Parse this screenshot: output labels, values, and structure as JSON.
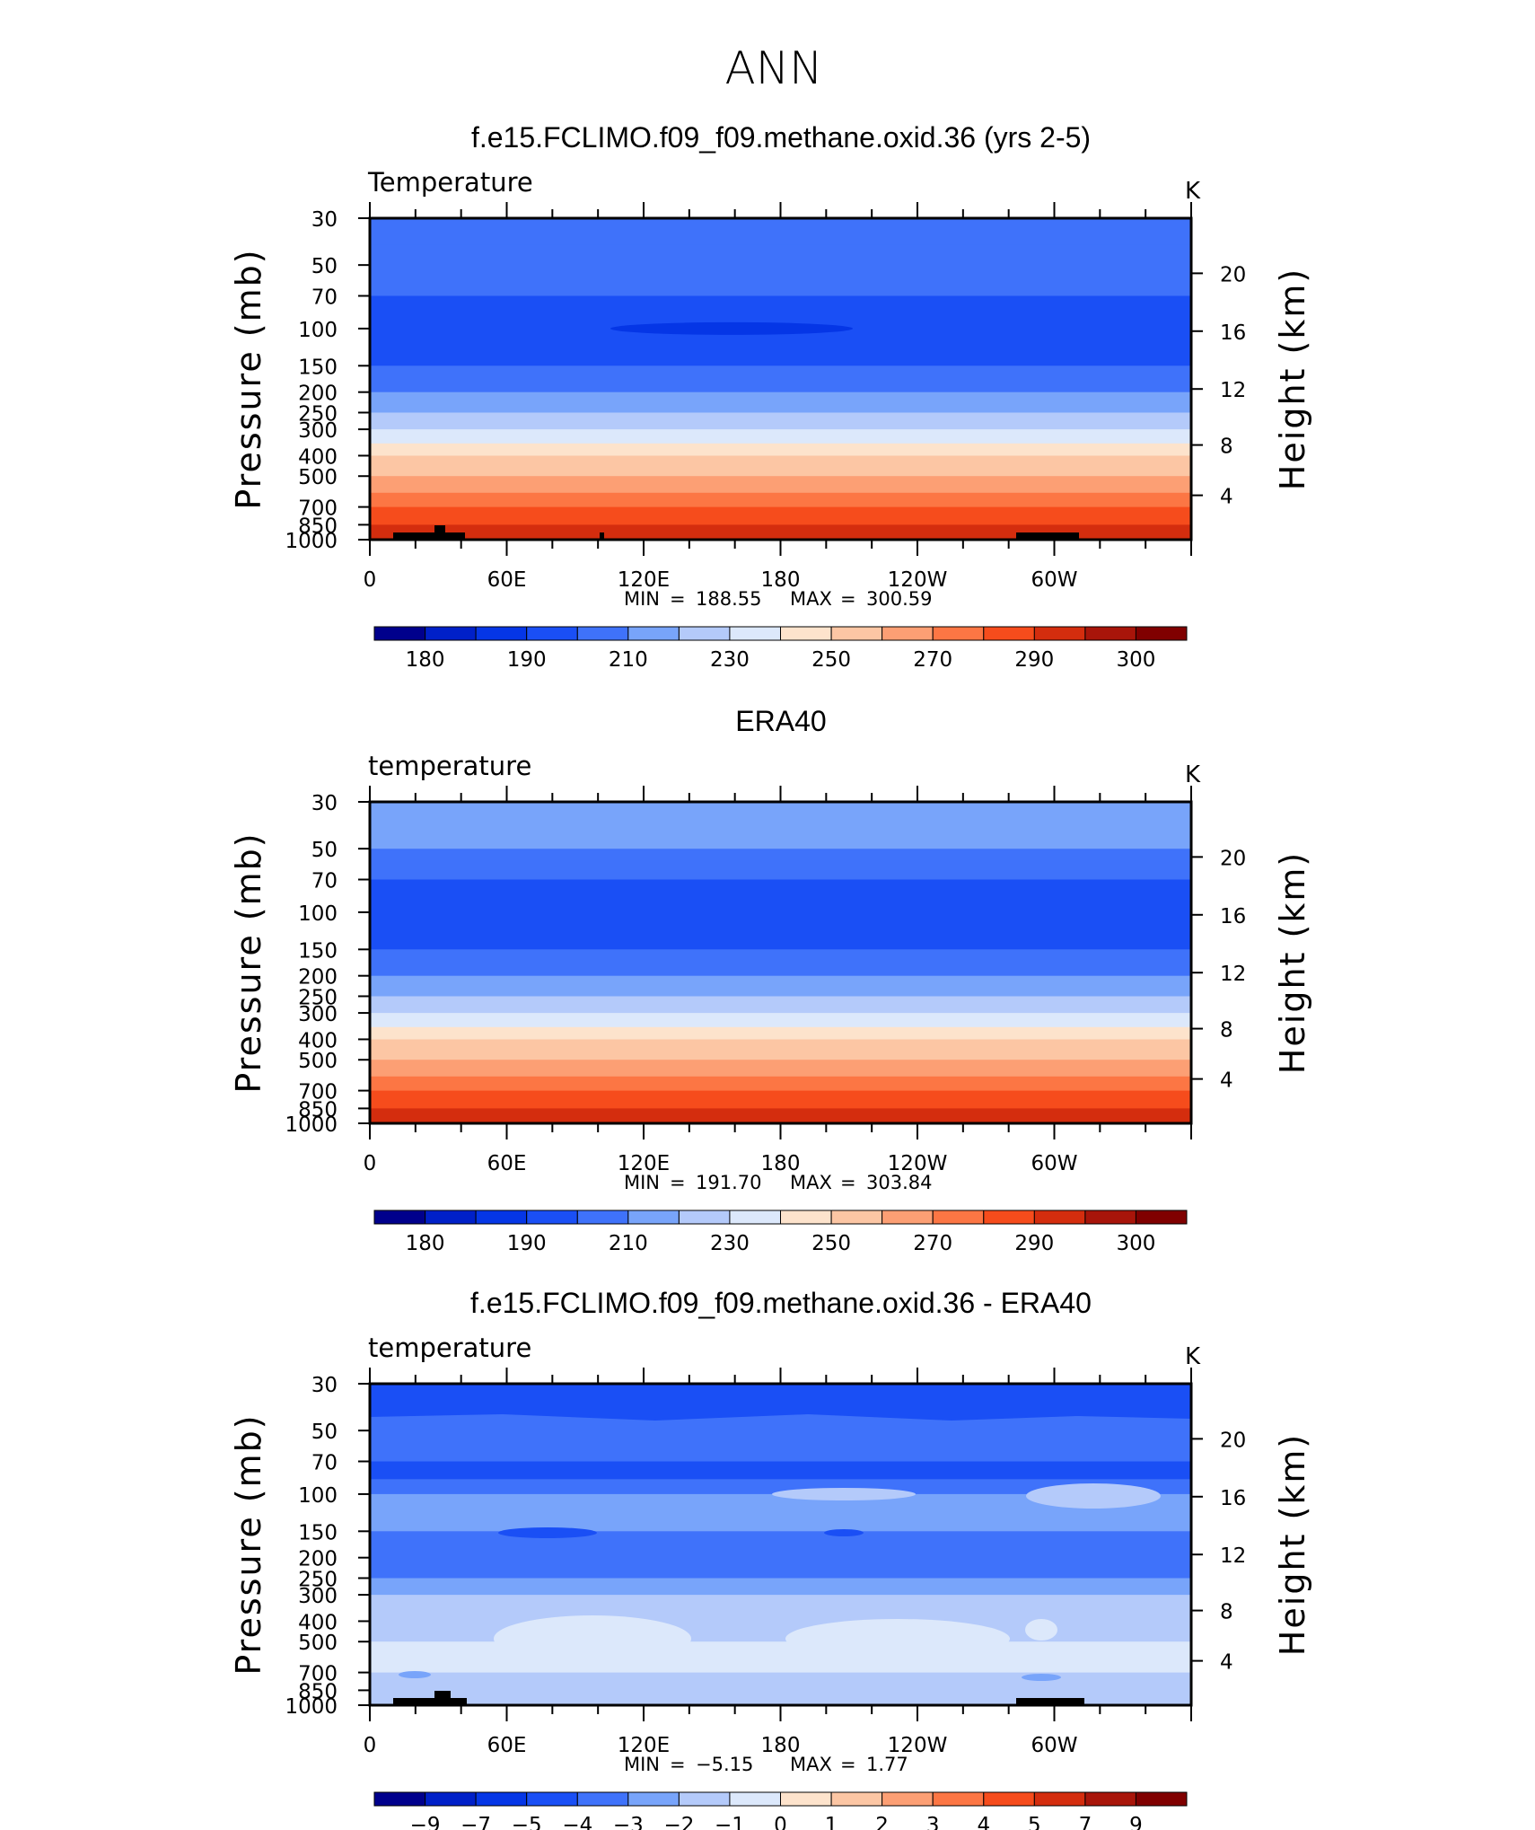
{
  "page_title": "ANN",
  "chart_data": [
    {
      "type": "heatmap",
      "title": "f.e15.FCLIMO.f09_f09.methane.oxid.36 (yrs 2-5)",
      "left_label": "Temperature",
      "units": "K",
      "ylabel": "Pressure (mb)",
      "ylabel_right": "Height (km)",
      "x_ticklabels": [
        "0",
        "60E",
        "120E",
        "180",
        "120W",
        "60W"
      ],
      "y_ticklabels": [
        "30",
        "50",
        "70",
        "100",
        "150",
        "200",
        "250",
        "300",
        "400",
        "500",
        "700",
        "850",
        "1000"
      ],
      "y_right_ticklabels": [
        "20",
        "16",
        "12",
        "8",
        "4"
      ],
      "ylim": [
        1000,
        30
      ],
      "yscale": "log",
      "stats": {
        "min_label": "MIN",
        "min_value": "188.55",
        "max_label": "MAX",
        "max_value": "300.59"
      },
      "colorbar_labels": [
        "180",
        "190",
        "210",
        "230",
        "250",
        "270",
        "290",
        "300"
      ],
      "profile": [
        {
          "p": 30,
          "level": 4
        },
        {
          "p": 35,
          "level": 4
        },
        {
          "p": 40,
          "level": 4
        },
        {
          "p": 50,
          "level": 4
        },
        {
          "p": 70,
          "level": 3
        },
        {
          "p": 100,
          "level": 3
        },
        {
          "p": 150,
          "level": 4
        },
        {
          "p": 200,
          "level": 5
        },
        {
          "p": 250,
          "level": 6
        },
        {
          "p": 300,
          "level": 7
        },
        {
          "p": 350,
          "level": 8
        },
        {
          "p": 400,
          "level": 9
        },
        {
          "p": 500,
          "level": 10
        },
        {
          "p": 600,
          "level": 11
        },
        {
          "p": 700,
          "level": 12
        },
        {
          "p": 850,
          "level": 13
        },
        {
          "p": 1000,
          "level": 13
        }
      ]
    },
    {
      "type": "heatmap",
      "title": "ERA40",
      "left_label": "temperature",
      "units": "K",
      "ylabel": "Pressure (mb)",
      "ylabel_right": "Height (km)",
      "x_ticklabels": [
        "0",
        "60E",
        "120E",
        "180",
        "120W",
        "60W"
      ],
      "y_ticklabels": [
        "30",
        "50",
        "70",
        "100",
        "150",
        "200",
        "250",
        "300",
        "400",
        "500",
        "700",
        "850",
        "1000"
      ],
      "y_right_ticklabels": [
        "20",
        "16",
        "12",
        "8",
        "4"
      ],
      "ylim": [
        1000,
        30
      ],
      "yscale": "log",
      "stats": {
        "min_label": "MIN",
        "min_value": "191.70",
        "max_label": "MAX",
        "max_value": "303.84"
      },
      "colorbar_labels": [
        "180",
        "190",
        "210",
        "230",
        "250",
        "270",
        "290",
        "300"
      ],
      "profile": [
        {
          "p": 30,
          "level": 5
        },
        {
          "p": 40,
          "level": 5
        },
        {
          "p": 50,
          "level": 4
        },
        {
          "p": 70,
          "level": 3
        },
        {
          "p": 100,
          "level": 3
        },
        {
          "p": 150,
          "level": 4
        },
        {
          "p": 200,
          "level": 5
        },
        {
          "p": 250,
          "level": 6
        },
        {
          "p": 300,
          "level": 7
        },
        {
          "p": 350,
          "level": 8
        },
        {
          "p": 400,
          "level": 9
        },
        {
          "p": 500,
          "level": 10
        },
        {
          "p": 600,
          "level": 11
        },
        {
          "p": 700,
          "level": 12
        },
        {
          "p": 850,
          "level": 13
        },
        {
          "p": 1000,
          "level": 14
        }
      ]
    },
    {
      "type": "heatmap",
      "title": "f.e15.FCLIMO.f09_f09.methane.oxid.36 - ERA40",
      "left_label": "temperature",
      "units": "K",
      "ylabel": "Pressure (mb)",
      "ylabel_right": "Height (km)",
      "x_ticklabels": [
        "0",
        "60E",
        "120E",
        "180",
        "120W",
        "60W"
      ],
      "y_ticklabels": [
        "30",
        "50",
        "70",
        "100",
        "150",
        "200",
        "250",
        "300",
        "400",
        "500",
        "700",
        "850",
        "1000"
      ],
      "y_right_ticklabels": [
        "20",
        "16",
        "12",
        "8",
        "4"
      ],
      "ylim": [
        1000,
        30
      ],
      "yscale": "log",
      "stats": {
        "min_label": "MIN",
        "min_value": "−5.15",
        "max_label": "MAX",
        "max_value": "1.77"
      },
      "colorbar_labels": [
        "−9",
        "−7",
        "−5",
        "−4",
        "−3",
        "−2",
        "−1",
        "0",
        "1",
        "2",
        "3",
        "4",
        "5",
        "7",
        "9"
      ],
      "profile": [
        {
          "p": 30,
          "level": 3
        },
        {
          "p": 40,
          "level": 3
        },
        {
          "p": 50,
          "level": 4
        },
        {
          "p": 70,
          "level": 3
        },
        {
          "p": 85,
          "level": 4
        },
        {
          "p": 100,
          "level": 5
        },
        {
          "p": 150,
          "level": 4
        },
        {
          "p": 200,
          "level": 4
        },
        {
          "p": 250,
          "level": 5
        },
        {
          "p": 300,
          "level": 6
        },
        {
          "p": 400,
          "level": 6
        },
        {
          "p": 500,
          "level": 7
        },
        {
          "p": 700,
          "level": 6
        },
        {
          "p": 850,
          "level": 6
        },
        {
          "p": 1000,
          "level": 7
        }
      ]
    }
  ],
  "colormap": [
    "#00008c",
    "#0020c8",
    "#0536e6",
    "#1a4ff5",
    "#3f72fa",
    "#78a4fa",
    "#b4cafa",
    "#dce8fb",
    "#fde3cc",
    "#fcc6a4",
    "#fc9f74",
    "#fc7644",
    "#f64c1c",
    "#d42d0e",
    "#a8150a",
    "#800000"
  ]
}
